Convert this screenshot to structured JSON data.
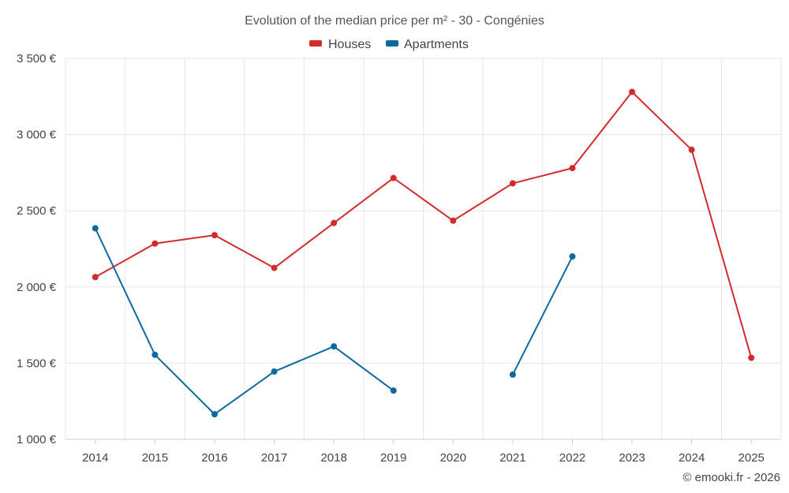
{
  "chart_data": {
    "type": "line",
    "title": "Evolution of the median price per m² - 30 - Congénies",
    "categories": [
      "2014",
      "2015",
      "2016",
      "2017",
      "2018",
      "2019",
      "2020",
      "2021",
      "2022",
      "2023",
      "2024",
      "2025"
    ],
    "series": [
      {
        "name": "Houses",
        "color": "#d12b2b",
        "values": [
          2065,
          2285,
          2340,
          2125,
          2420,
          2715,
          2435,
          2680,
          2780,
          3280,
          2900,
          1535
        ]
      },
      {
        "name": "Apartments",
        "color": "#0c6aa0",
        "values": [
          2385,
          1555,
          1165,
          1445,
          1610,
          1320,
          null,
          1425,
          2200,
          null,
          null,
          null
        ]
      }
    ],
    "ylim": [
      1000,
      3500
    ],
    "yticks": [
      1000,
      1500,
      2000,
      2500,
      3000,
      3500
    ],
    "ytick_labels": [
      "1 000 €",
      "1 500 €",
      "2 000 €",
      "2 500 €",
      "3 000 €",
      "3 500 €"
    ],
    "legend_position": "top-center",
    "grid": true,
    "xlabel": "",
    "ylabel": ""
  },
  "credit": "© emooki.fr - 2026"
}
